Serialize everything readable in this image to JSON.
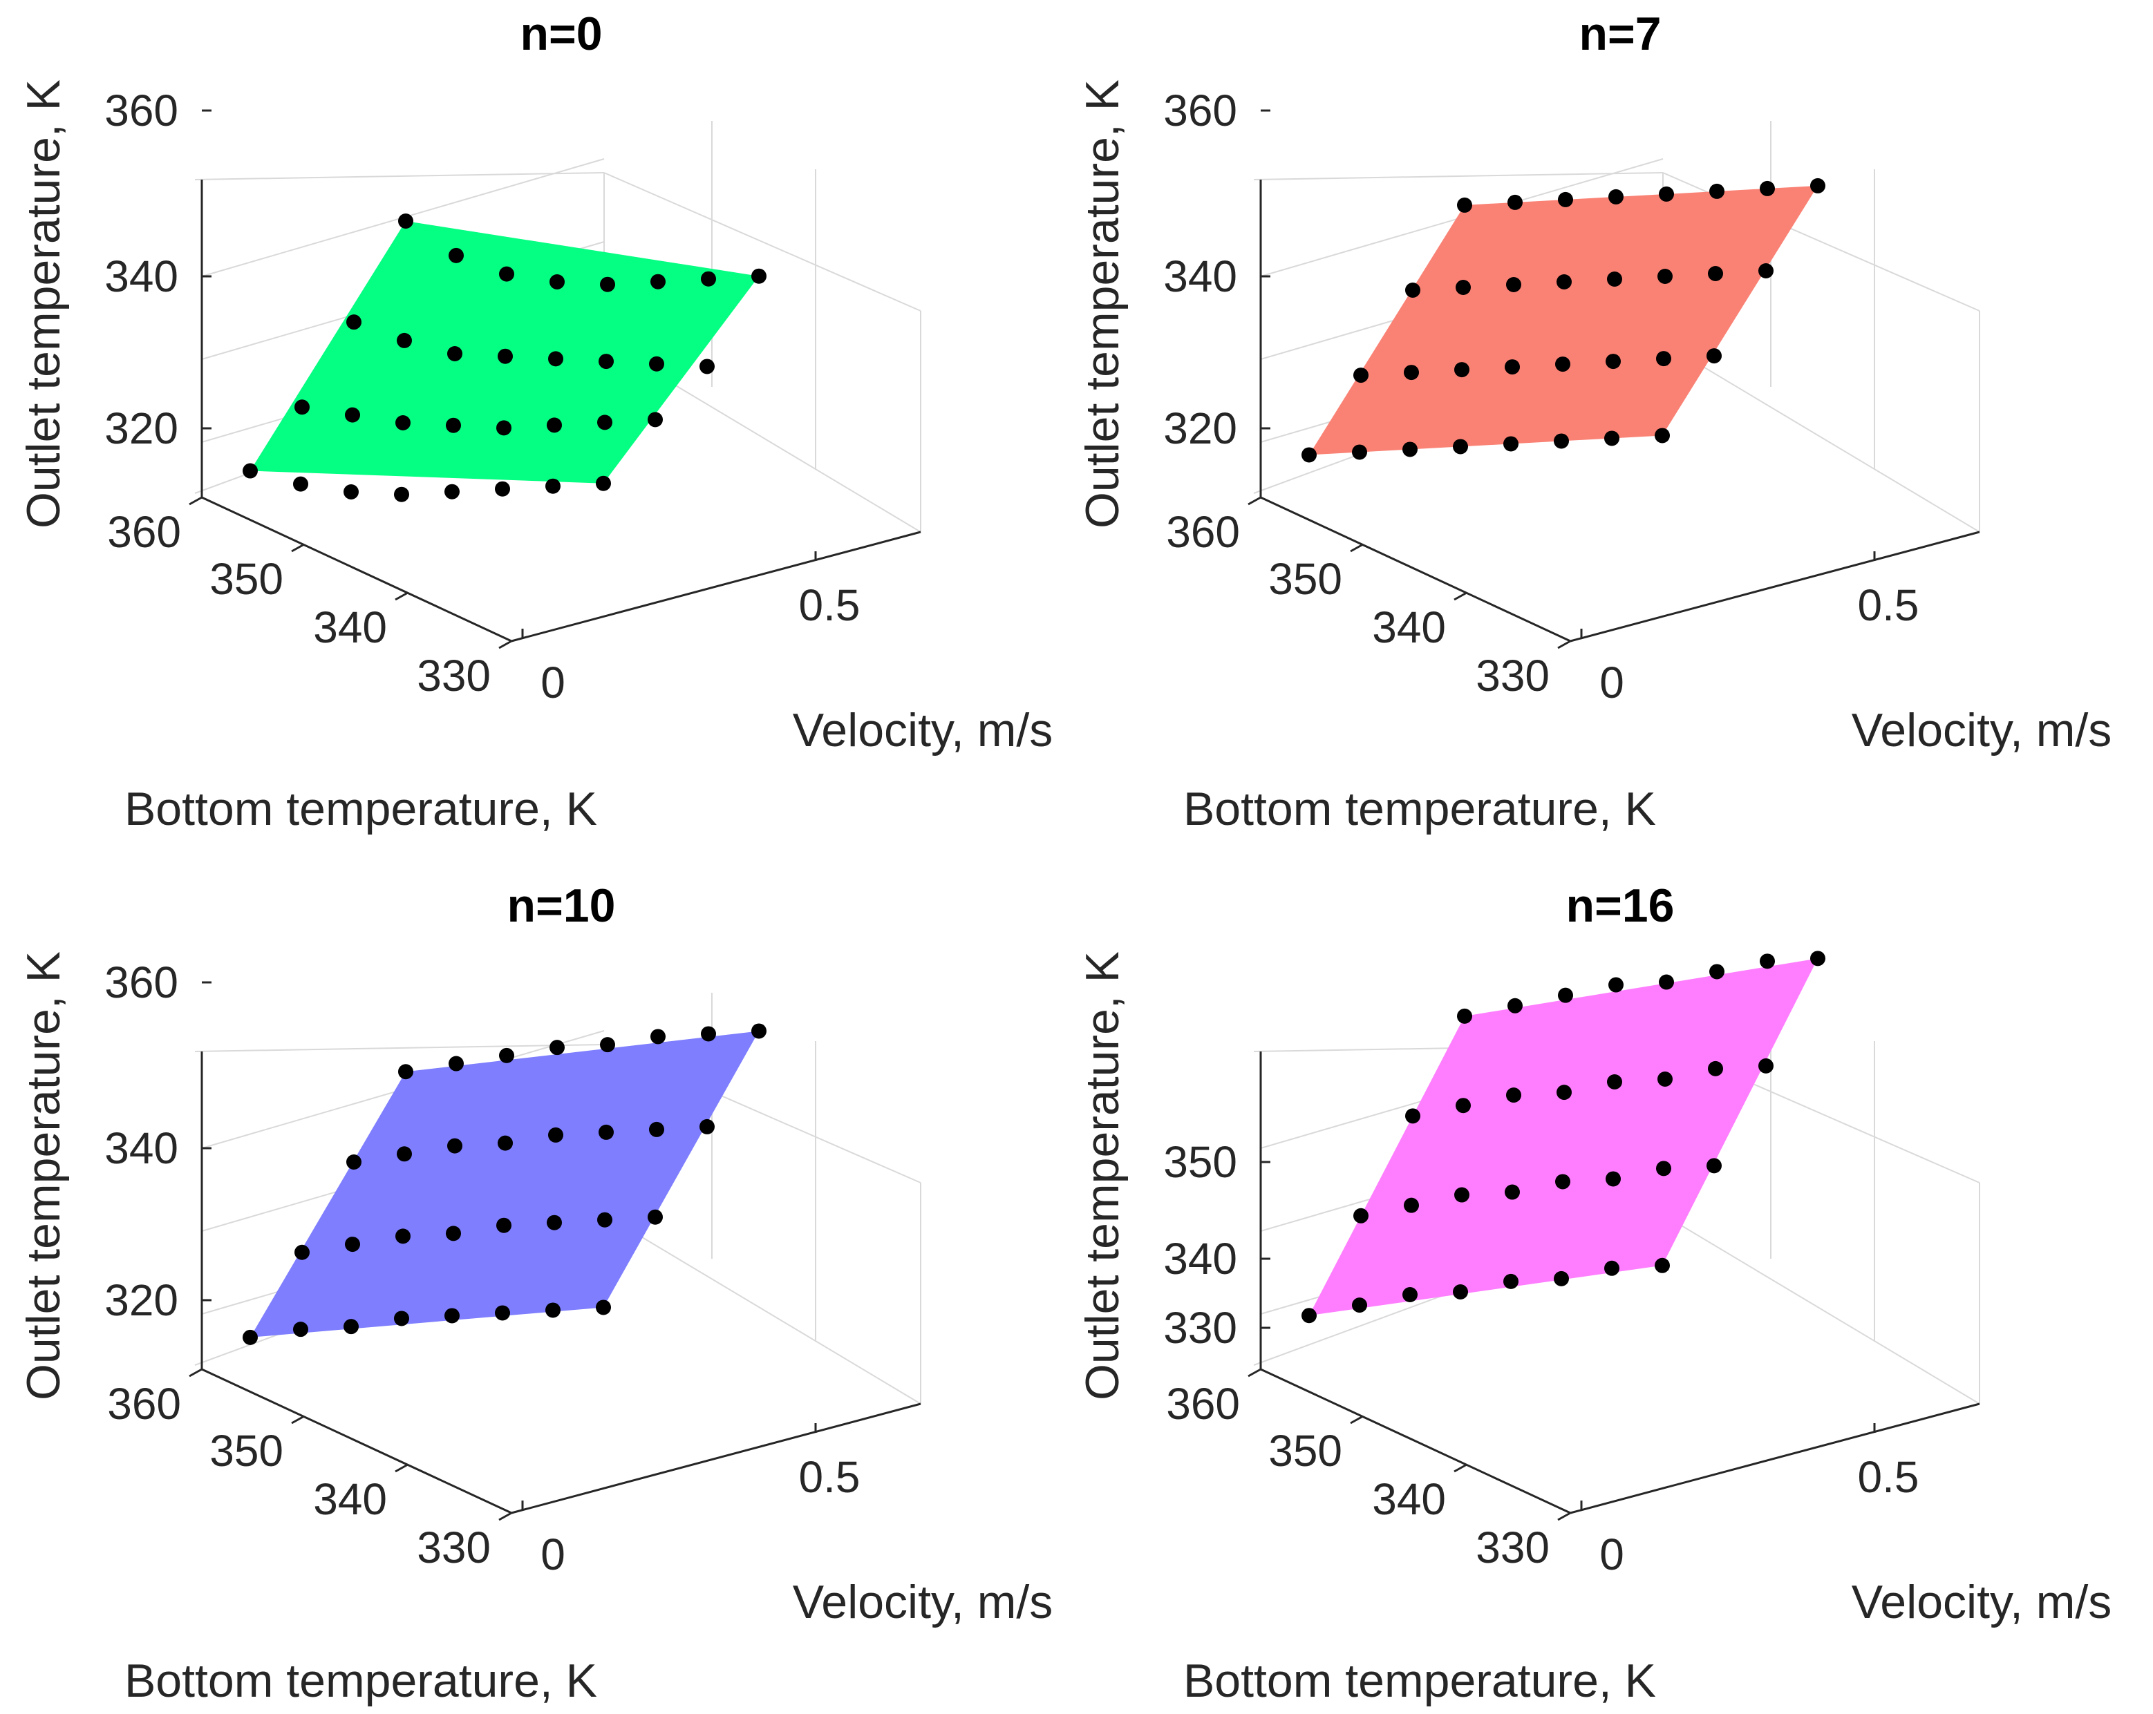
{
  "chart_data": [
    {
      "type": "surface3d",
      "title": "n=0",
      "xlabel": "Velocity, m/s",
      "ylabel": "Bottom temperature, K",
      "zlabel": "Outlet temperature, K",
      "xticks": [
        "0",
        "0.5"
      ],
      "yticks": [
        "330",
        "340",
        "350",
        "360"
      ],
      "zticks": [
        "320",
        "340",
        "360"
      ],
      "surface_color": "#00ff7f",
      "points": [
        [
          [
            0.1,
            357
          ],
          [
            0.15,
            350
          ],
          [
            0.2,
            346
          ],
          [
            0.25,
            344
          ],
          [
            0.3,
            343
          ],
          [
            0.35,
            343
          ],
          [
            0.4,
            343
          ],
          [
            0.45,
            343
          ]
        ],
        [
          [
            0.05,
            338
          ],
          [
            0.1,
            334
          ],
          [
            0.15,
            331
          ],
          [
            0.2,
            330
          ],
          [
            0.25,
            329
          ],
          [
            0.3,
            328
          ],
          [
            0.35,
            327
          ],
          [
            0.4,
            326
          ]
        ],
        [
          [
            0.0,
            322
          ],
          [
            0.05,
            320
          ],
          [
            0.1,
            318
          ],
          [
            0.15,
            317
          ],
          [
            0.2,
            316
          ],
          [
            0.25,
            316
          ],
          [
            0.3,
            316
          ],
          [
            0.35,
            316
          ]
        ],
        [
          [
            0.0,
            310
          ],
          [
            0.05,
            307
          ],
          [
            0.1,
            305
          ],
          [
            0.15,
            304
          ],
          [
            0.2,
            304
          ],
          [
            0.25,
            304
          ],
          [
            0.3,
            304
          ],
          [
            0.35,
            304
          ]
        ]
      ]
    },
    {
      "type": "surface3d",
      "title": "n=7",
      "xlabel": "Velocity, m/s",
      "ylabel": "Bottom temperature, K",
      "zlabel": "Outlet temperature, K",
      "xticks": [
        "0",
        "0.5"
      ],
      "yticks": [
        "330",
        "340",
        "350",
        "360"
      ],
      "zticks": [
        "320",
        "340",
        "360"
      ],
      "surface_color": "#fa8072",
      "points": [
        [
          [
            0.1,
            360
          ],
          [
            0.15,
            360
          ],
          [
            0.2,
            360
          ],
          [
            0.25,
            360
          ],
          [
            0.3,
            360
          ],
          [
            0.35,
            360
          ],
          [
            0.4,
            360
          ],
          [
            0.45,
            360
          ]
        ],
        [
          [
            0.05,
            344
          ],
          [
            0.1,
            344
          ],
          [
            0.15,
            344
          ],
          [
            0.2,
            344
          ],
          [
            0.25,
            344
          ],
          [
            0.3,
            344
          ],
          [
            0.35,
            344
          ],
          [
            0.4,
            344
          ]
        ],
        [
          [
            0.0,
            328
          ],
          [
            0.05,
            328
          ],
          [
            0.1,
            328
          ],
          [
            0.15,
            328
          ],
          [
            0.2,
            328
          ],
          [
            0.25,
            328
          ],
          [
            0.3,
            328
          ],
          [
            0.35,
            328
          ]
        ],
        [
          [
            0.0,
            313
          ],
          [
            0.05,
            313
          ],
          [
            0.1,
            313
          ],
          [
            0.15,
            313
          ],
          [
            0.2,
            313
          ],
          [
            0.25,
            313
          ],
          [
            0.3,
            313
          ],
          [
            0.35,
            313
          ]
        ]
      ]
    },
    {
      "type": "surface3d",
      "title": "n=10",
      "xlabel": "Velocity, m/s",
      "ylabel": "Bottom temperature, K",
      "zlabel": "Outlet temperature, K",
      "xticks": [
        "0",
        "0.5"
      ],
      "yticks": [
        "330",
        "340",
        "350",
        "360"
      ],
      "zticks": [
        "320",
        "340",
        "360"
      ],
      "surface_color": "#7b7bff",
      "points": [
        [
          [
            0.1,
            361
          ],
          [
            0.15,
            362
          ],
          [
            0.2,
            363
          ],
          [
            0.25,
            364
          ],
          [
            0.3,
            364
          ],
          [
            0.35,
            365
          ],
          [
            0.4,
            365
          ],
          [
            0.45,
            365
          ]
        ],
        [
          [
            0.05,
            344
          ],
          [
            0.1,
            345
          ],
          [
            0.15,
            346
          ],
          [
            0.2,
            346
          ],
          [
            0.25,
            347
          ],
          [
            0.3,
            347
          ],
          [
            0.35,
            347
          ],
          [
            0.4,
            347
          ]
        ],
        [
          [
            0.0,
            327
          ],
          [
            0.05,
            328
          ],
          [
            0.1,
            329
          ],
          [
            0.15,
            329
          ],
          [
            0.2,
            330
          ],
          [
            0.25,
            330
          ],
          [
            0.3,
            330
          ],
          [
            0.35,
            330
          ]
        ],
        [
          [
            0.0,
            311
          ],
          [
            0.05,
            312
          ],
          [
            0.1,
            312
          ],
          [
            0.15,
            313
          ],
          [
            0.2,
            313
          ],
          [
            0.25,
            313
          ],
          [
            0.3,
            313
          ],
          [
            0.35,
            313
          ]
        ]
      ]
    },
    {
      "type": "surface3d",
      "title": "n=16",
      "xlabel": "Velocity, m/s",
      "ylabel": "Bottom temperature, K",
      "zlabel": "Outlet temperature, K",
      "xticks": [
        "0",
        "0.5"
      ],
      "yticks": [
        "330",
        "340",
        "350",
        "360"
      ],
      "zticks": [
        "330",
        "340",
        "350"
      ],
      "surface_color": "#ff7bff",
      "points": [
        [
          [
            0.1,
            361
          ],
          [
            0.15,
            362
          ],
          [
            0.2,
            363
          ],
          [
            0.25,
            364
          ],
          [
            0.3,
            364
          ],
          [
            0.35,
            365
          ],
          [
            0.4,
            366
          ],
          [
            0.45,
            366
          ]
        ],
        [
          [
            0.05,
            348
          ],
          [
            0.1,
            349
          ],
          [
            0.15,
            350
          ],
          [
            0.2,
            350
          ],
          [
            0.25,
            351
          ],
          [
            0.3,
            351
          ],
          [
            0.35,
            352
          ],
          [
            0.4,
            352
          ]
        ],
        [
          [
            0.0,
            335
          ],
          [
            0.05,
            336
          ],
          [
            0.1,
            337
          ],
          [
            0.15,
            337
          ],
          [
            0.2,
            338
          ],
          [
            0.25,
            338
          ],
          [
            0.3,
            339
          ],
          [
            0.35,
            339
          ]
        ],
        [
          [
            0.0,
            322
          ],
          [
            0.05,
            323
          ],
          [
            0.1,
            324
          ],
          [
            0.15,
            324
          ],
          [
            0.2,
            325
          ],
          [
            0.25,
            325
          ],
          [
            0.3,
            326
          ],
          [
            0.35,
            326
          ]
        ]
      ]
    }
  ]
}
